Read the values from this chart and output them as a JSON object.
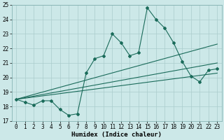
{
  "x": [
    0,
    1,
    2,
    3,
    4,
    5,
    6,
    7,
    8,
    9,
    10,
    11,
    12,
    13,
    14,
    15,
    16,
    17,
    18,
    19,
    20,
    21,
    22,
    23
  ],
  "main_y": [
    18.5,
    18.3,
    18.1,
    18.4,
    18.4,
    17.8,
    17.4,
    17.5,
    20.3,
    21.3,
    21.5,
    23.0,
    22.4,
    21.5,
    21.7,
    24.8,
    24.0,
    23.4,
    22.4,
    21.1,
    20.1,
    19.7,
    20.5,
    20.6
  ],
  "trend1_y": [
    18.5,
    22.3
  ],
  "trend2_y": [
    18.5,
    21.0
  ],
  "trend3_y": [
    18.5,
    20.3
  ],
  "trend_x": [
    0,
    23
  ],
  "background_color": "#cce8e8",
  "grid_color": "#aacccc",
  "line_color": "#1a6b5a",
  "xlabel": "Humidex (Indice chaleur)",
  "ylim": [
    17,
    25
  ],
  "xlim": [
    -0.5,
    23.5
  ],
  "yticks": [
    17,
    18,
    19,
    20,
    21,
    22,
    23,
    24,
    25
  ],
  "xticks": [
    0,
    1,
    2,
    3,
    4,
    5,
    6,
    7,
    8,
    9,
    10,
    11,
    12,
    13,
    14,
    15,
    16,
    17,
    18,
    19,
    20,
    21,
    22,
    23
  ],
  "tick_fontsize": 5.5,
  "xlabel_fontsize": 6.5
}
